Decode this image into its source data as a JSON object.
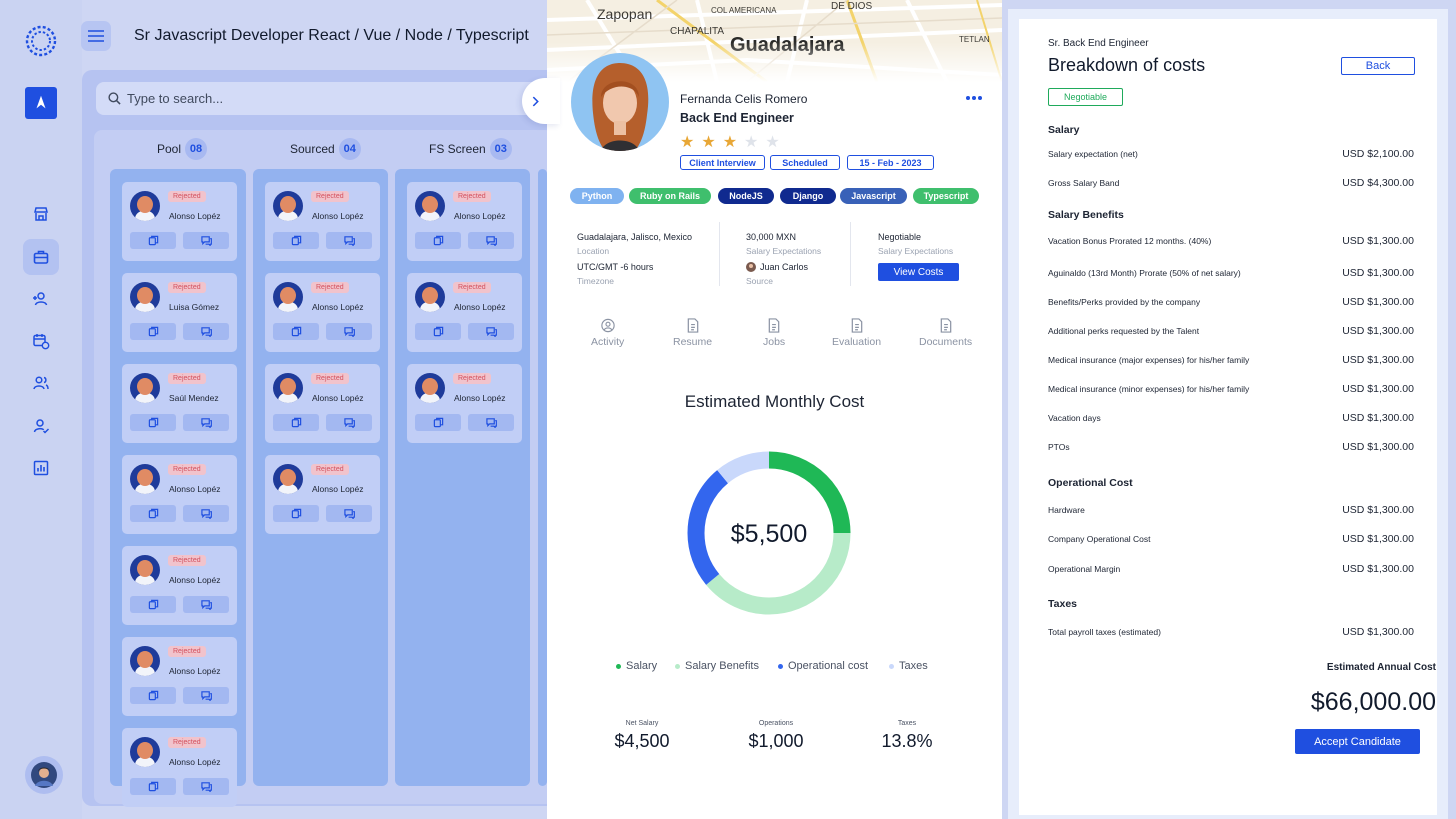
{
  "header": {
    "title": "Sr Javascript Developer React / Vue / Node / Typescript"
  },
  "search": {
    "placeholder": "Type to search..."
  },
  "sidebar": {
    "icons": [
      "logo-icon",
      "brand-icon",
      "store-icon",
      "briefcase-icon",
      "add-user-icon",
      "calendar-clock-icon",
      "users-icon",
      "user-check-icon",
      "report-chart-icon"
    ],
    "active": "briefcase-icon"
  },
  "board": {
    "columns": [
      {
        "label": "Pool",
        "count": "08",
        "cards": [
          {
            "status": "Rejected",
            "name": "Alonso Lopéz"
          },
          {
            "status": "Rejected",
            "name": "Luisa Gómez"
          },
          {
            "status": "Rejected",
            "name": "Saúl Mendez"
          },
          {
            "status": "Rejected",
            "name": "Alonso Lopéz"
          },
          {
            "status": "Rejected",
            "name": "Alonso Lopéz"
          },
          {
            "status": "Rejected",
            "name": "Alonso Lopéz"
          },
          {
            "status": "Rejected",
            "name": "Alonso Lopéz"
          }
        ]
      },
      {
        "label": "Sourced",
        "count": "04",
        "cards": [
          {
            "status": "Rejected",
            "name": "Alonso Lopéz"
          },
          {
            "status": "Rejected",
            "name": "Alonso Lopéz"
          },
          {
            "status": "Rejected",
            "name": "Alonso Lopéz"
          },
          {
            "status": "Rejected",
            "name": "Alonso Lopéz"
          }
        ]
      },
      {
        "label": "FS Screen",
        "count": "03",
        "cards": [
          {
            "status": "Rejected",
            "name": "Alonso Lopéz"
          },
          {
            "status": "Rejected",
            "name": "Alonso Lopéz"
          },
          {
            "status": "Rejected",
            "name": "Alonso Lopéz"
          }
        ]
      }
    ]
  },
  "map": {
    "labels": [
      "Zapopan",
      "COL AMERICANA",
      "CHAPALITA",
      "Guadalajara",
      "DE DIOS",
      "TETLAN"
    ]
  },
  "candidate": {
    "name": "Fernanda Celis Romero",
    "role": "Back End Engineer",
    "rating": 3,
    "rating_max": 5,
    "pills": [
      "Client Interview",
      "Scheduled",
      "15 - Feb - 2023"
    ],
    "skills": [
      {
        "label": "Python",
        "color": "#7fb2f0"
      },
      {
        "label": "Ruby on Rails",
        "color": "#3fbf6d"
      },
      {
        "label": "NodeJS",
        "color": "#102a8f"
      },
      {
        "label": "Django",
        "color": "#102a8f"
      },
      {
        "label": "Javascript",
        "color": "#3961b8"
      },
      {
        "label": "Typescript",
        "color": "#3fbf6d"
      }
    ],
    "info": {
      "location_value": "Guadalajara, Jalisco, Mexico",
      "location_label": "Location",
      "timezone_value": "UTC/GMT -6 hours",
      "timezone_label": "Timezone",
      "salary_value": "30,000 MXN",
      "salary_label": "Salary Expectations",
      "source_value": "Juan Carlos",
      "source_label": "Source",
      "negotiable_value": "Negotiable",
      "negotiable_label": "Salary Expectations",
      "view_costs": "View Costs"
    },
    "tabs": [
      "Activity",
      "Resume",
      "Jobs",
      "Evaluation",
      "Documents"
    ]
  },
  "chart_data": {
    "type": "pie",
    "title": "Estimated Monthly Cost",
    "center_label": "$5,500",
    "categories": [
      "Salary",
      "Salary Benefits",
      "Operational cost",
      "Taxes"
    ],
    "values": [
      25,
      39,
      25,
      11
    ],
    "colors": [
      "#1fb856",
      "#b7ebc9",
      "#3366ee",
      "#c9d8fb"
    ],
    "stats": [
      {
        "label": "Net Salary",
        "value": "$4,500"
      },
      {
        "label": "Operations",
        "value": "$1,000"
      },
      {
        "label": "Taxes",
        "value": "13.8%"
      }
    ]
  },
  "breakdown": {
    "kicker": "Sr. Back End Engineer",
    "title": "Breakdown of costs",
    "back": "Back",
    "status": "Negotiable",
    "sections": [
      {
        "title": "Salary",
        "rows": [
          {
            "label": "Salary expectation (net)",
            "value": "USD $2,100.00"
          },
          {
            "label": "Gross Salary Band",
            "value": "USD $4,300.00"
          }
        ]
      },
      {
        "title": "Salary Benefits",
        "rows": [
          {
            "label": "Vacation Bonus Prorated 12 months. (40%)",
            "value": "USD $1,300.00"
          },
          {
            "label": "Aguinaldo (13rd Month) Prorate (50% of net salary)",
            "value": "USD $1,300.00"
          },
          {
            "label": "Benefits/Perks provided by the company",
            "value": "USD $1,300.00"
          },
          {
            "label": "Additional perks requested by the Talent",
            "value": "USD $1,300.00"
          },
          {
            "label": "Medical insurance (major expenses) for his/her family",
            "value": "USD $1,300.00"
          },
          {
            "label": "Medical insurance (minor expenses) for his/her family",
            "value": "USD $1,300.00"
          },
          {
            "label": "Vacation days",
            "value": "USD $1,300.00"
          },
          {
            "label": "PTOs",
            "value": "USD $1,300.00"
          }
        ]
      },
      {
        "title": "Operational Cost",
        "rows": [
          {
            "label": "Hardware",
            "value": "USD $1,300.00"
          },
          {
            "label": "Company Operational Cost",
            "value": "USD $1,300.00"
          },
          {
            "label": "Operational Margin",
            "value": "USD $1,300.00"
          }
        ]
      },
      {
        "title": "Taxes",
        "rows": [
          {
            "label": "Total payroll taxes (estimated)",
            "value": "USD $1,300.00"
          }
        ]
      }
    ],
    "annual_label": "Estimated Annual Cost",
    "annual_value": "$66,000.00",
    "accept": "Accept Candidate"
  }
}
